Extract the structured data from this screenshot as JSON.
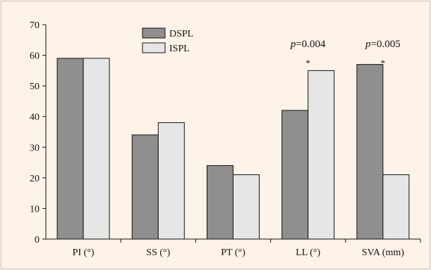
{
  "chart_data": {
    "type": "bar",
    "title": "",
    "xlabel": "",
    "ylabel": "",
    "ylim": [
      0,
      70
    ],
    "yticks": [
      0,
      10,
      20,
      30,
      40,
      50,
      60,
      70
    ],
    "categories": [
      "PI (°)",
      "SS (°)",
      "PT (°)",
      "LL (°)",
      "SVA (mm)"
    ],
    "series": [
      {
        "name": "DSPL",
        "color": "#8f8f8f",
        "values": [
          59,
          34,
          24,
          42,
          57
        ]
      },
      {
        "name": "ISPL",
        "color": "#e6e6e6",
        "values": [
          59,
          38,
          21,
          55,
          21
        ]
      }
    ],
    "legend_position": "top-center",
    "annotations": [
      {
        "category_index": 3,
        "p_symbol": "p",
        "p_text": "=0.004",
        "star": "*"
      },
      {
        "category_index": 4,
        "p_symbol": "p",
        "p_text": "=0.005",
        "star": "*"
      }
    ]
  }
}
